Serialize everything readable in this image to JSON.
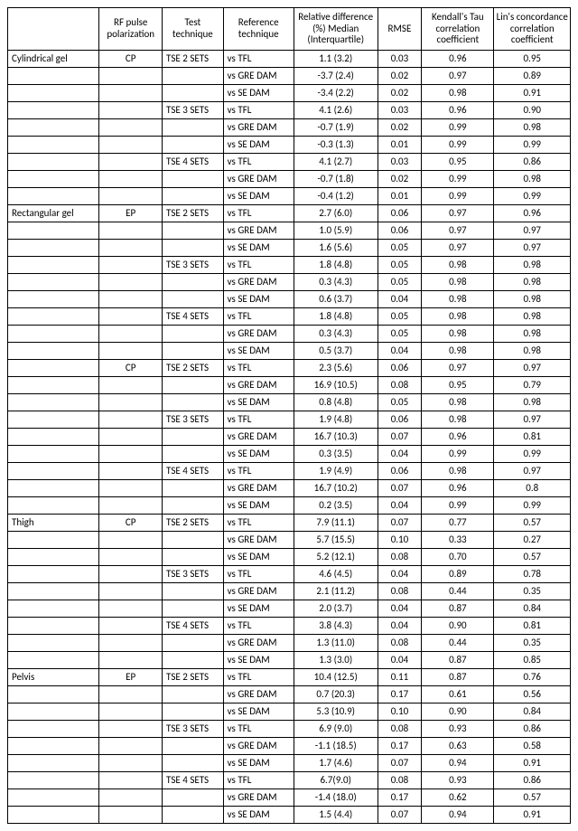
{
  "table": {
    "columns": [
      "",
      "RF pulse polarization",
      "Test technique",
      "Reference technique",
      "Relative difference (%) Median (Interquartile)",
      "RMSE",
      "Kendall's Tau correlation coefficient",
      "Lin's concordance correlation coefficient"
    ],
    "col_align": [
      "l",
      "c",
      "l",
      "l",
      "c",
      "c",
      "c",
      "c"
    ],
    "font_family": "Calibri, Arial, sans-serif",
    "header_fontsize": 11,
    "body_fontsize": 11,
    "border_color": "#000000",
    "background_color": "#ffffff",
    "rows": [
      [
        "Cylindrical gel",
        "CP",
        "TSE 2 SETS",
        "vs TFL",
        "1.1 (3.2)",
        "0.03",
        "0.96",
        "0.95"
      ],
      [
        "",
        "",
        "",
        "vs GRE DAM",
        "-3.7 (2.4)",
        "0.02",
        "0.97",
        "0.89"
      ],
      [
        "",
        "",
        "",
        "vs SE DAM",
        "-3.4 (2.2)",
        "0.02",
        "0.98",
        "0.91"
      ],
      [
        "",
        "",
        "TSE 3 SETS",
        "vs TFL",
        "4.1 (2.6)",
        "0.03",
        "0.96",
        "0.90"
      ],
      [
        "",
        "",
        "",
        "vs GRE DAM",
        "-0.7 (1.9)",
        "0.02",
        "0.99",
        "0.98"
      ],
      [
        "",
        "",
        "",
        "vs SE DAM",
        "-0.3 (1.3)",
        "0.01",
        "0.99",
        "0.99"
      ],
      [
        "",
        "",
        "TSE 4 SETS",
        "vs TFL",
        "4.1 (2.7)",
        "0.03",
        "0.95",
        "0.86"
      ],
      [
        "",
        "",
        "",
        "vs GRE DAM",
        "-0.7 (1.8)",
        "0.02",
        "0.99",
        "0.98"
      ],
      [
        "",
        "",
        "",
        "vs SE DAM",
        "-0.4 (1.2)",
        "0.01",
        "0.99",
        "0.99"
      ],
      [
        "Rectangular gel",
        "EP",
        "TSE 2 SETS",
        "vs TFL",
        "2.7 (6.0)",
        "0.06",
        "0.97",
        "0.96"
      ],
      [
        "",
        "",
        "",
        "vs GRE DAM",
        "1.0 (5.9)",
        "0.06",
        "0.97",
        "0.97"
      ],
      [
        "",
        "",
        "",
        "vs SE DAM",
        "1.6 (5.6)",
        "0.05",
        "0.97",
        "0.97"
      ],
      [
        "",
        "",
        "TSE 3 SETS",
        "vs TFL",
        "1.8 (4.8)",
        "0.05",
        "0.98",
        "0.98"
      ],
      [
        "",
        "",
        "",
        "vs GRE DAM",
        "0.3 (4.3)",
        "0.05",
        "0.98",
        "0.98"
      ],
      [
        "",
        "",
        "",
        "vs SE DAM",
        "0.6 (3.7)",
        "0.04",
        "0.98",
        "0.98"
      ],
      [
        "",
        "",
        "TSE 4 SETS",
        "vs TFL",
        "1.8 (4.8)",
        "0.05",
        "0.98",
        "0.98"
      ],
      [
        "",
        "",
        "",
        "vs GRE DAM",
        "0.3 (4.3)",
        "0.05",
        "0.98",
        "0.98"
      ],
      [
        "",
        "",
        "",
        "vs SE DAM",
        "0.5 (3.7)",
        "0.04",
        "0.98",
        "0.98"
      ],
      [
        "",
        "CP",
        "TSE 2 SETS",
        "vs TFL",
        "2.3 (5.6)",
        "0.06",
        "0.97",
        "0.97"
      ],
      [
        "",
        "",
        "",
        "vs GRE DAM",
        "16.9 (10.5)",
        "0.08",
        "0.95",
        "0.79"
      ],
      [
        "",
        "",
        "",
        "vs SE DAM",
        "0.8 (4.8)",
        "0.05",
        "0.98",
        "0.98"
      ],
      [
        "",
        "",
        "TSE 3 SETS",
        "vs TFL",
        "1.9 (4.8)",
        "0.06",
        "0.98",
        "0.97"
      ],
      [
        "",
        "",
        "",
        "vs GRE DAM",
        "16.7 (10.3)",
        "0.07",
        "0.96",
        "0.81"
      ],
      [
        "",
        "",
        "",
        "vs SE DAM",
        "0.3 (3.5)",
        "0.04",
        "0.99",
        "0.99"
      ],
      [
        "",
        "",
        "TSE 4 SETS",
        "vs TFL",
        "1.9 (4.9)",
        "0.06",
        "0.98",
        "0.97"
      ],
      [
        "",
        "",
        "",
        "vs GRE DAM",
        "16.7 (10.2)",
        "0.07",
        "0.96",
        "0.8"
      ],
      [
        "",
        "",
        "",
        "vs SE DAM",
        "0.2 (3.5)",
        "0.04",
        "0.99",
        "0.99"
      ],
      [
        "Thigh",
        "CP",
        "TSE 2 SETS",
        "vs TFL",
        "7.9 (11.1)",
        "0.07",
        "0.77",
        "0.57"
      ],
      [
        "",
        "",
        "",
        "vs GRE DAM",
        "5.7 (15.5)",
        "0.10",
        "0.33",
        "0.27"
      ],
      [
        "",
        "",
        "",
        "vs SE DAM",
        "5.2 (12.1)",
        "0.08",
        "0.70",
        "0.57"
      ],
      [
        "",
        "",
        "TSE 3 SETS",
        "vs TFL",
        "4.6 (4.5)",
        "0.04",
        "0.89",
        "0.78"
      ],
      [
        "",
        "",
        "",
        "vs GRE DAM",
        "2.1 (11.2)",
        "0.08",
        "0.44",
        "0.35"
      ],
      [
        "",
        "",
        "",
        "vs SE DAM",
        "2.0 (3.7)",
        "0.04",
        "0.87",
        "0.84"
      ],
      [
        "",
        "",
        "TSE 4 SETS",
        "vs TFL",
        "3.8 (4.3)",
        "0.04",
        "0.90",
        "0.81"
      ],
      [
        "",
        "",
        "",
        "vs GRE DAM",
        "1.3 (11.0)",
        "0.08",
        "0.44",
        "0.35"
      ],
      [
        "",
        "",
        "",
        "vs SE DAM",
        "1.3 (3.0)",
        "0.04",
        "0.87",
        "0.85"
      ],
      [
        "Pelvis",
        "EP",
        "TSE 2 SETS",
        "vs TFL",
        "10.4 (12.5)",
        "0.11",
        "0.87",
        "0.76"
      ],
      [
        "",
        "",
        "",
        "vs GRE DAM",
        "0.7 (20.3)",
        "0.17",
        "0.61",
        "0.56"
      ],
      [
        "",
        "",
        "",
        "vs SE DAM",
        "5.3 (10.9)",
        "0.10",
        "0.90",
        "0.84"
      ],
      [
        "",
        "",
        "TSE 3 SETS",
        "vs TFL",
        "6.9 (9.0)",
        "0.08",
        "0.93",
        "0.86"
      ],
      [
        "",
        "",
        "",
        "vs GRE DAM",
        "-1.1 (18.5)",
        "0.17",
        "0.63",
        "0.58"
      ],
      [
        "",
        "",
        "",
        "vs SE DAM",
        "1.7 (4.6)",
        "0.07",
        "0.94",
        "0.91"
      ],
      [
        "",
        "",
        "TSE 4 SETS",
        "vs TFL",
        "6.7(9.0)",
        "0.08",
        "0.93",
        "0.86"
      ],
      [
        "",
        "",
        "",
        "vs GRE DAM",
        "-1.4 (18.0)",
        "0.17",
        "0.62",
        "0.57"
      ],
      [
        "",
        "",
        "",
        "vs SE DAM",
        "1.5 (4.4)",
        "0.07",
        "0.94",
        "0.91"
      ]
    ]
  }
}
